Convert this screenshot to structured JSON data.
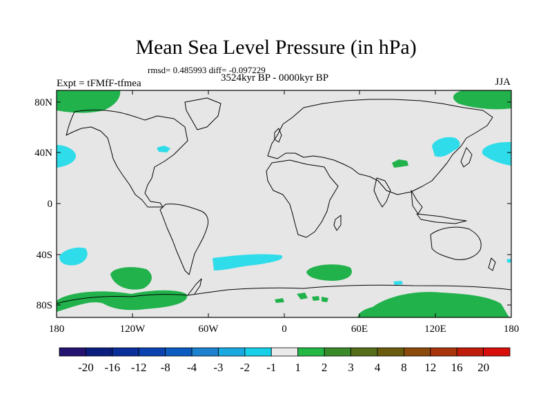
{
  "title": "Mean Sea Level Pressure (in hPa)",
  "stats": "rmsd= 0.485993 diff= -0.097229",
  "period": "3524kyr BP - 0000kyr BP",
  "experiment": "Expt = tFMfF-tfmea",
  "season": "JJA",
  "map": {
    "lat_ticks": [
      "80N",
      "40N",
      "0",
      "40S",
      "80S"
    ],
    "lon_ticks": [
      "180",
      "120W",
      "60W",
      "0",
      "60E",
      "120E",
      "180"
    ]
  },
  "colorbar": {
    "colors": [
      "#241270",
      "#0b1e80",
      "#0a2e9a",
      "#0a43b0",
      "#0a5cc0",
      "#1c82d0",
      "#18a9e0",
      "#16d0ea",
      "#eaeaea",
      "#23b844",
      "#3a8a2a",
      "#566e18",
      "#6b5b0c",
      "#8a4a0a",
      "#a8350a",
      "#c01c0a",
      "#d80e0a"
    ],
    "labels": [
      "-20",
      "-16",
      "-12",
      "-8",
      "-4",
      "-3",
      "-2",
      "-1",
      "1",
      "2",
      "3",
      "4",
      "8",
      "12",
      "16",
      "20"
    ]
  },
  "colors": {
    "background": "#e6e6e6",
    "positive": "#22b24c",
    "negative": "#2fdcea"
  }
}
